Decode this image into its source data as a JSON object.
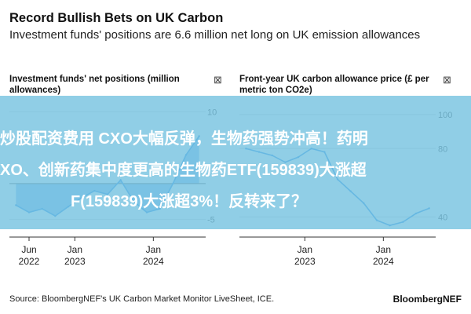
{
  "header": {
    "title": "Record Bullish Bets on UK Carbon",
    "subtitle": "Investment funds' positions are 6.6 million net long on UK emission allowances"
  },
  "icons": {
    "left_panel": "close-box-icon",
    "right_panel": "close-box-icon"
  },
  "overlay": {
    "line1": "炒股配资费用 CXO大幅反弹，生物药强势冲高！药明",
    "line2": "XO、创新药集中度更高的生物药ETF(159839)大涨超",
    "line3": "F(159839)大涨超3%！反转来了？",
    "color": "#78c3e1"
  },
  "footer": {
    "source": "Source: BloombergNEF's UK Carbon Market Monitor LiveSheet, ICE.",
    "brand": "BloombergNEF"
  },
  "chart_data": [
    {
      "type": "area",
      "title": "Investment funds' net positions (million allowances)",
      "x_ticks": [
        {
          "label": [
            "Jun",
            "2022"
          ],
          "x": "2022-06"
        },
        {
          "label": [
            "Jan",
            "2023"
          ],
          "x": "2023-01"
        },
        {
          "label": [
            "Jan",
            "2024"
          ],
          "x": "2024-01"
        }
      ],
      "y_ticks": [
        "10",
        "-5"
      ],
      "ylim": [
        -7,
        12
      ],
      "xlim": [
        "2022-03",
        "2024-09"
      ],
      "color": "#1e88e5",
      "series": [
        {
          "x": [
            "2022-04",
            "2022-06",
            "2022-08",
            "2022-10",
            "2022-12",
            "2023-02",
            "2023-04",
            "2023-06",
            "2023-08",
            "2023-10",
            "2023-12",
            "2024-02",
            "2024-04",
            "2024-06",
            "2024-08"
          ],
          "values": [
            -3.0,
            -4.0,
            -3.5,
            -4.5,
            -3.2,
            -2.0,
            -1.0,
            -1.5,
            0.5,
            -2.5,
            -4.0,
            -3.5,
            0.0,
            4.0,
            6.6
          ]
        }
      ]
    },
    {
      "type": "line",
      "title": "Front-year UK carbon allowance price (£ per metric ton CO2e)",
      "x_ticks": [
        {
          "label": [
            "Jan",
            "2023"
          ],
          "x": "2023-01"
        },
        {
          "label": [
            "Jan",
            "2024"
          ],
          "x": "2024-01"
        }
      ],
      "y_ticks": [
        "100",
        "80",
        "40"
      ],
      "ylim": [
        30,
        110
      ],
      "xlim": [
        "2022-03",
        "2024-09"
      ],
      "color": "#1e88e5",
      "series": [
        {
          "x": [
            "2022-04",
            "2022-06",
            "2022-08",
            "2022-10",
            "2022-12",
            "2023-02",
            "2023-04",
            "2023-06",
            "2023-08",
            "2023-10",
            "2023-12",
            "2024-02",
            "2024-04",
            "2024-06",
            "2024-08"
          ],
          "values": [
            80,
            78,
            76,
            72,
            75,
            80,
            78,
            62,
            55,
            48,
            38,
            35,
            37,
            42,
            45
          ]
        }
      ]
    }
  ]
}
